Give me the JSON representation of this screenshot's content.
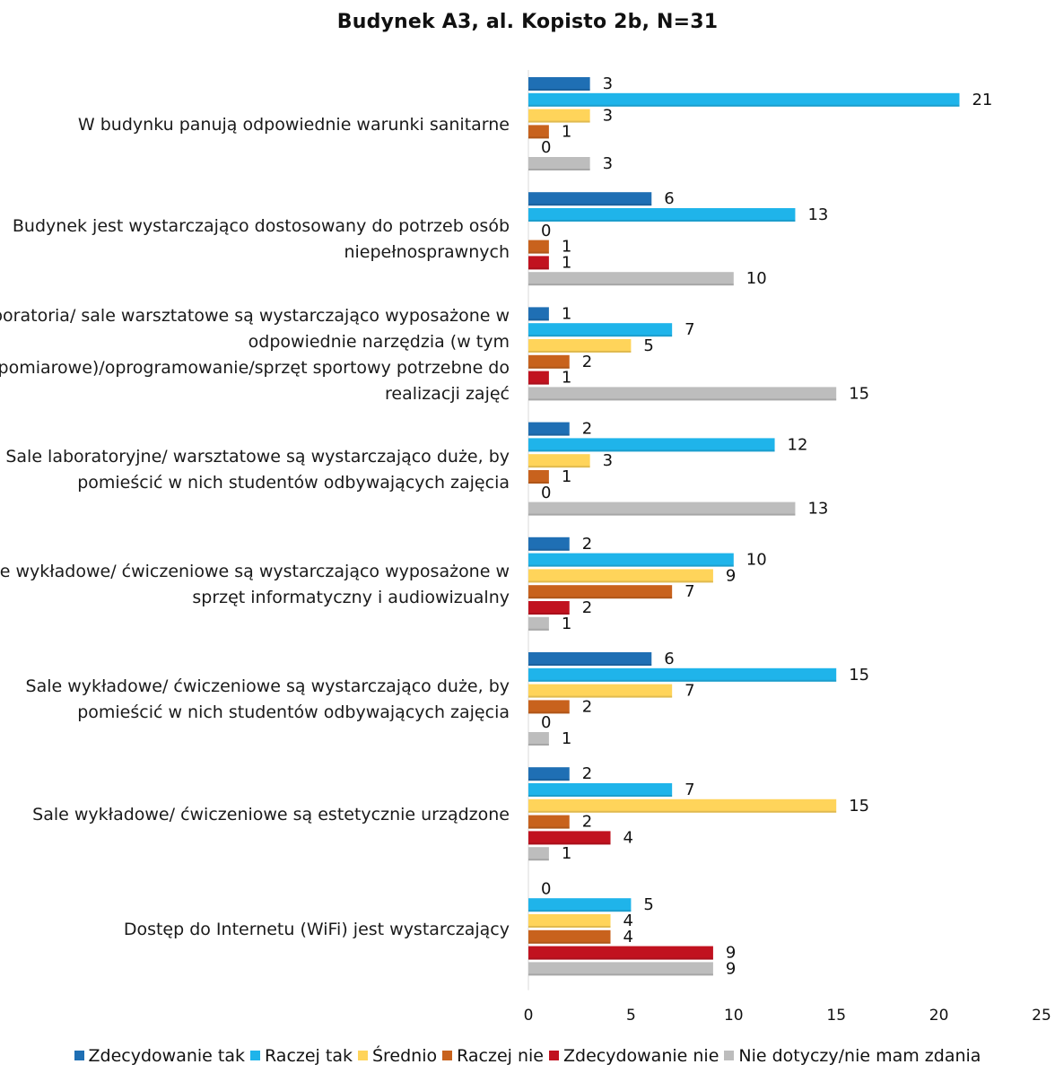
{
  "chart_data": {
    "type": "bar",
    "orientation": "horizontal",
    "title": "Budynek A3, al. Kopisto 2b, N=31",
    "categories": [
      "W budynku panują odpowiednie warunki sanitarne",
      "Budynek jest wystarczająco dostosowany do potrzeb osób niepełnosprawnych",
      "Laboratoria/ sale warsztatowe są wystarczająco wyposażone w odpowiednie narzędzia (w tym pomiarowe)/oprogramowanie/sprzęt sportowy potrzebne do realizacji zajęć",
      "Sale laboratoryjne/ warsztatowe są wystarczająco duże, by pomieścić w nich studentów odbywających zajęcia",
      "Sale wykładowe/ ćwiczeniowe są wystarczająco wyposażone w sprzęt informatyczny i audiowizualny",
      "Sale wykładowe/ ćwiczeniowe są wystarczająco duże, by pomieścić w nich studentów odbywających zajęcia",
      "Sale wykładowe/ ćwiczeniowe są estetycznie urządzone",
      "Dostęp do Internetu (WiFi) jest wystarczający"
    ],
    "series": [
      {
        "name": "Zdecydowanie tak",
        "color": "#1f6fb4",
        "values": [
          3,
          6,
          1,
          2,
          2,
          6,
          2,
          0
        ]
      },
      {
        "name": "Raczej tak",
        "color": "#1fb4ea",
        "values": [
          21,
          13,
          7,
          12,
          10,
          15,
          7,
          5
        ]
      },
      {
        "name": "Średnio",
        "color": "#ffd45a",
        "values": [
          3,
          0,
          5,
          3,
          9,
          7,
          15,
          4
        ]
      },
      {
        "name": "Raczej nie",
        "color": "#c8621d",
        "values": [
          1,
          1,
          2,
          1,
          7,
          2,
          2,
          4
        ]
      },
      {
        "name": "Zdecydowanie nie",
        "color": "#c1121f",
        "values": [
          0,
          1,
          1,
          0,
          2,
          0,
          4,
          9
        ]
      },
      {
        "name": "Nie dotyczy/nie mam zdania",
        "color": "#bdbdbd",
        "values": [
          3,
          10,
          15,
          13,
          1,
          1,
          1,
          9
        ]
      }
    ],
    "xlim": [
      0,
      25
    ],
    "xticks": [
      "0",
      "5",
      "10",
      "15",
      "20",
      "25"
    ],
    "grid": false,
    "legend_position": "bottom"
  }
}
